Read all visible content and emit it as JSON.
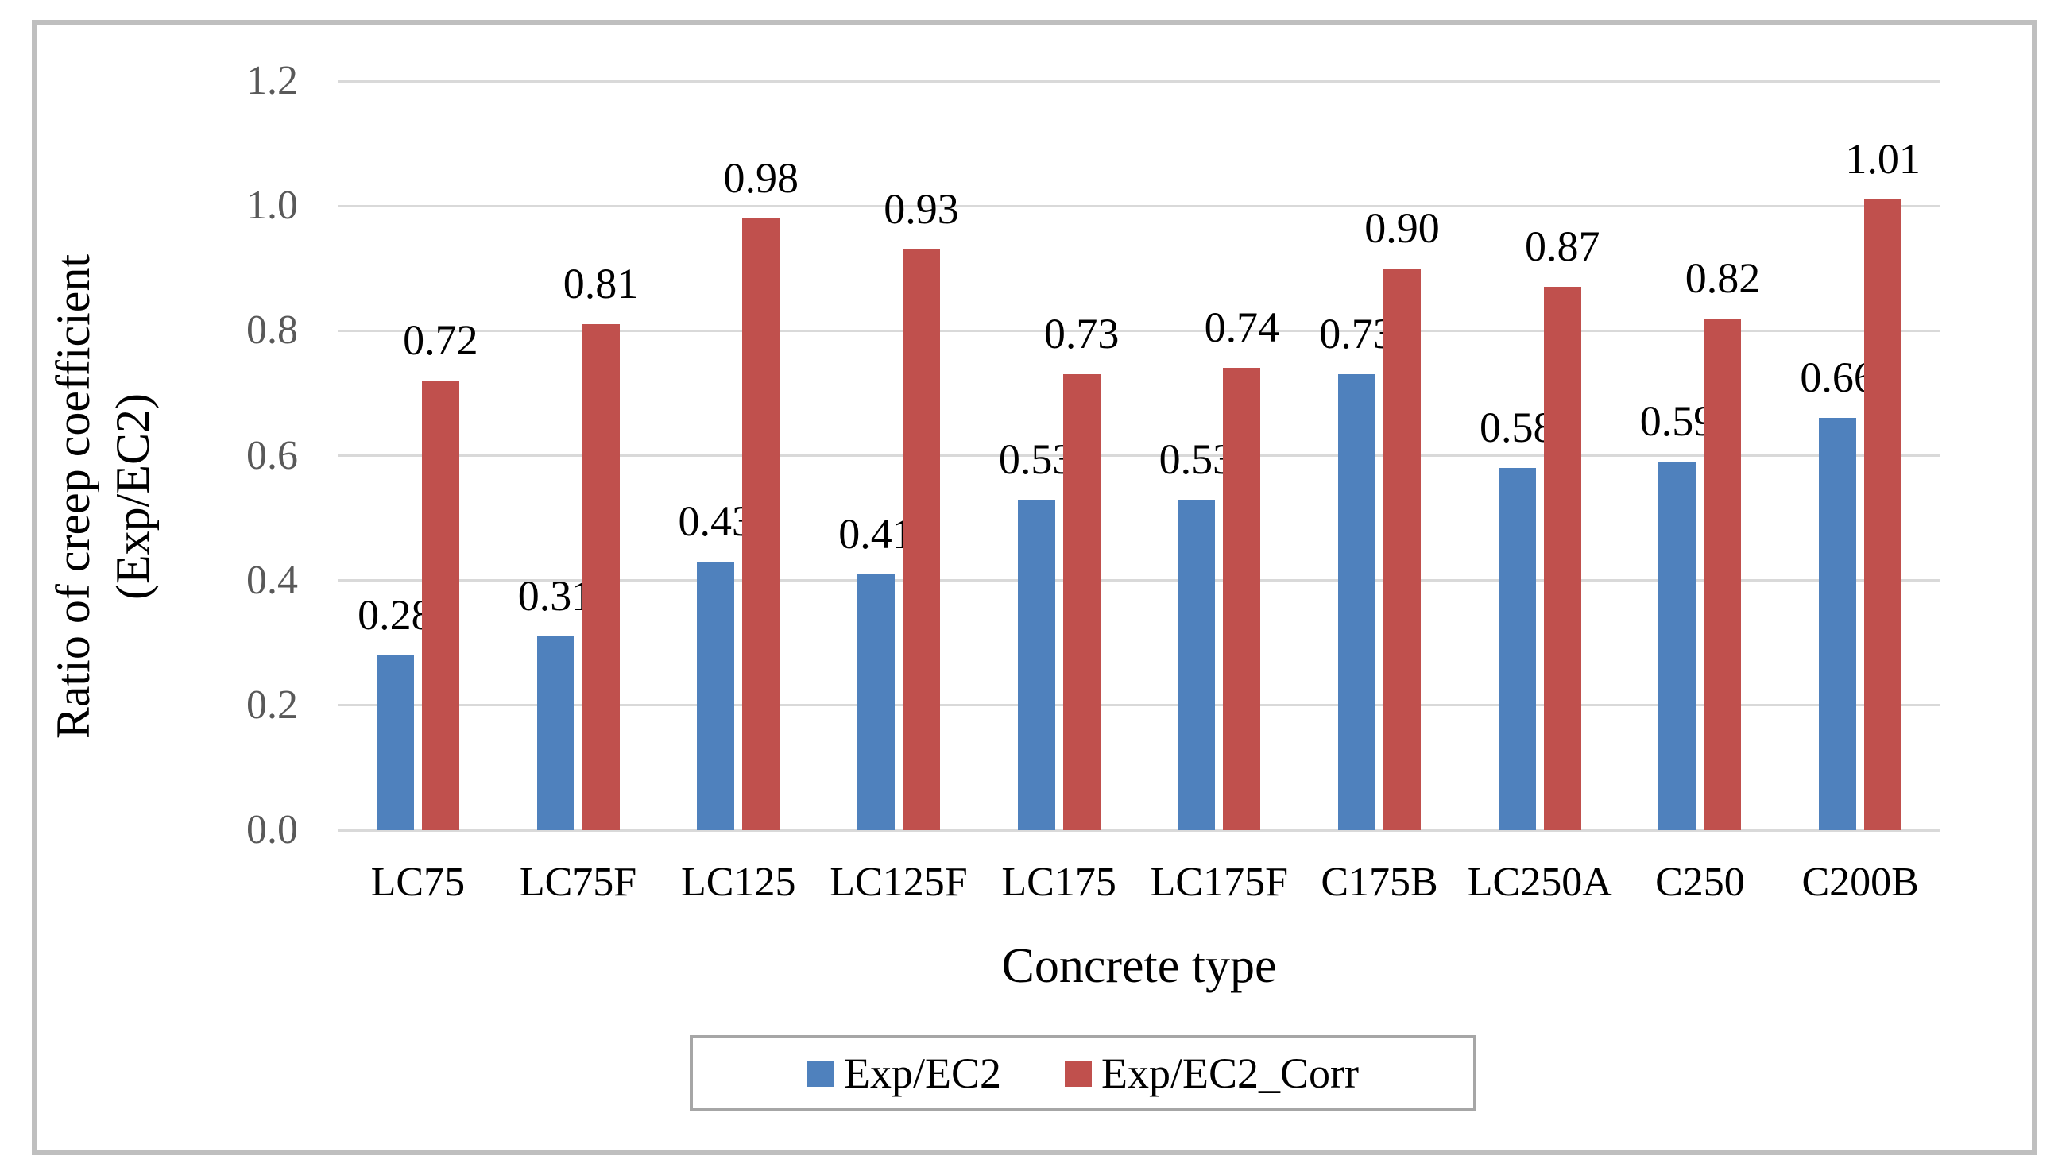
{
  "chart_data": {
    "type": "bar",
    "title": "",
    "categories": [
      "LC75",
      "LC75F",
      "LC125",
      "LC125F",
      "LC175",
      "LC175F",
      "C175B",
      "LC250A",
      "C250",
      "C200B"
    ],
    "series": [
      {
        "name": "Exp/EC2",
        "color": "#4F81BD",
        "values": [
          0.28,
          0.31,
          0.43,
          0.41,
          0.53,
          0.53,
          0.73,
          0.58,
          0.59,
          0.66
        ]
      },
      {
        "name": "Exp/EC2_Corr",
        "color": "#C0504D",
        "values": [
          0.72,
          0.81,
          0.98,
          0.93,
          0.73,
          0.74,
          0.9,
          0.87,
          0.82,
          1.01
        ]
      }
    ],
    "xlabel": "Concrete type",
    "ylabel_line1": "Ratio of creep coefficient",
    "ylabel_line2": "(Exp/EC2)",
    "ylim": [
      0.0,
      1.2
    ],
    "ytick_step": 0.2,
    "yticks": [
      "0.0",
      "0.2",
      "0.4",
      "0.6",
      "0.8",
      "1.0",
      "1.2"
    ],
    "grid": true,
    "data_labels": true,
    "data_label_format": "0.00",
    "legend_position": "bottom"
  },
  "colors": {
    "series_blue": "#4F81BD",
    "series_red": "#C0504D",
    "gridline": "#D9D9D9",
    "figure_border": "#BFBFBF",
    "legend_border": "#A6A6A6",
    "y_tick_text": "#595959",
    "x_tick_text": "#000000",
    "data_label_text": "#000000",
    "background": "#FFFFFF"
  }
}
